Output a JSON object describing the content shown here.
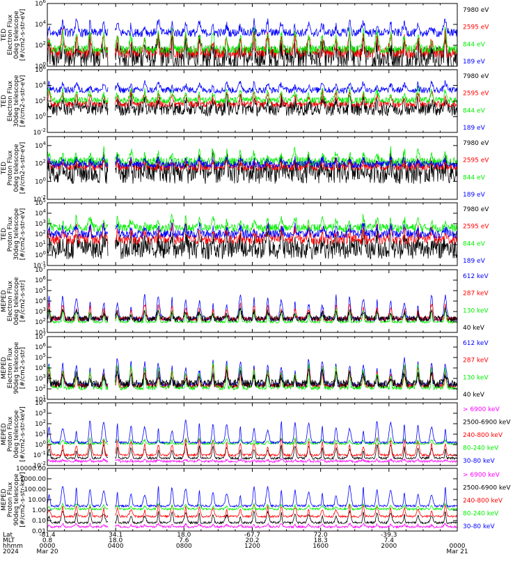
{
  "colors": {
    "black": "#000000",
    "blue": "#0000ff",
    "red": "#ff0000",
    "green": "#00ee00",
    "magenta": "#ff00ff",
    "frame": "#000000"
  },
  "chart_data": [
    {
      "type": "line",
      "ylabel_lines": [
        "TED",
        "Electron Flux",
        "0deg telescope",
        "[#/cm2-s-str-eV]"
      ],
      "y_log": true,
      "ylim_exp": [
        0,
        6
      ],
      "yticks": [
        {
          "exp": 0,
          "label_base": "10",
          "label_exp": "0"
        },
        {
          "exp": 2,
          "label_base": "10",
          "label_exp": "2"
        },
        {
          "exp": 4,
          "label_base": "10",
          "label_exp": "4"
        },
        {
          "exp": 6,
          "label_base": "10",
          "label_exp": "6"
        }
      ],
      "series": [
        {
          "name": "7980 eV",
          "color": "black",
          "base": 0.8,
          "peak": 2.3,
          "noise": 1.2
        },
        {
          "name": "2595 eV",
          "color": "red",
          "base": 1.3,
          "peak": 3.2,
          "noise": 0.5
        },
        {
          "name": "844 eV",
          "color": "green",
          "base": 1.6,
          "peak": 3.5,
          "noise": 0.4
        },
        {
          "name": "189 eV",
          "color": "blue",
          "base": 3.2,
          "peak": 4.3,
          "noise": 0.4
        }
      ]
    },
    {
      "type": "line",
      "ylabel_lines": [
        "TED",
        "Electron Flux",
        "30deg telescope",
        "[#/cm2-s-str-eV]"
      ],
      "y_log": true,
      "ylim_exp": [
        -2,
        6
      ],
      "yticks": [
        {
          "exp": -2,
          "label_base": "10",
          "label_exp": "-2"
        },
        {
          "exp": 0,
          "label_base": "10",
          "label_exp": "0"
        },
        {
          "exp": 2,
          "label_base": "10",
          "label_exp": "2"
        },
        {
          "exp": 4,
          "label_base": "10",
          "label_exp": "4"
        },
        {
          "exp": 6,
          "label_base": "10",
          "label_exp": "6"
        }
      ],
      "series": [
        {
          "name": "7980 eV",
          "color": "black",
          "base": 1.0,
          "peak": 2.3,
          "noise": 0.9
        },
        {
          "name": "2595 eV",
          "color": "red",
          "base": 1.6,
          "peak": 3.3,
          "noise": 0.4
        },
        {
          "name": "844 eV",
          "color": "green",
          "base": 2.1,
          "peak": 3.6,
          "noise": 0.4
        },
        {
          "name": "189 eV",
          "color": "blue",
          "base": 3.4,
          "peak": 4.5,
          "noise": 0.4
        }
      ]
    },
    {
      "type": "line",
      "ylabel_lines": [
        "TED",
        "Proton Flux",
        "0deg telescope",
        "[#/cm2-s-str-eV]"
      ],
      "y_log": true,
      "ylim_exp": [
        -2,
        5
      ],
      "yticks": [
        {
          "exp": -2,
          "label_base": "10",
          "label_exp": "-2"
        },
        {
          "exp": 0,
          "label_base": "10",
          "label_exp": "0"
        },
        {
          "exp": 2,
          "label_base": "10",
          "label_exp": "2"
        },
        {
          "exp": 4,
          "label_base": "10",
          "label_exp": "4"
        }
      ],
      "series": [
        {
          "name": "7980 eV",
          "color": "black",
          "base": 1.0,
          "peak": 2.2,
          "noise": 1.3
        },
        {
          "name": "2595 eV",
          "color": "red",
          "base": 1.6,
          "peak": 2.4,
          "noise": 0.4
        },
        {
          "name": "844 eV",
          "color": "green",
          "base": 2.2,
          "peak": 3.5,
          "noise": 0.5
        },
        {
          "name": "189 eV",
          "color": "blue",
          "base": 1.9,
          "peak": 2.6,
          "noise": 0.4
        }
      ]
    },
    {
      "type": "line",
      "ylabel_lines": [
        "TED",
        "Proton Flux",
        "30deg telescope",
        "[#/cm2-s-str-eV]"
      ],
      "y_log": true,
      "ylim_exp": [
        -1,
        5
      ],
      "yticks": [
        {
          "exp": -1,
          "label_base": "10",
          "label_exp": "-1"
        },
        {
          "exp": 0,
          "label_base": "10",
          "label_exp": "0"
        },
        {
          "exp": 1,
          "label_base": "10",
          "label_exp": "1"
        },
        {
          "exp": 2,
          "label_base": "10",
          "label_exp": "2"
        },
        {
          "exp": 3,
          "label_base": "10",
          "label_exp": "3"
        },
        {
          "exp": 4,
          "label_base": "10",
          "label_exp": "4"
        },
        {
          "exp": 5,
          "label_base": "10",
          "label_exp": "5"
        }
      ],
      "series": [
        {
          "name": "7980 eV",
          "color": "black",
          "base": 0.6,
          "peak": 1.9,
          "noise": 1.0
        },
        {
          "name": "2595 eV",
          "color": "red",
          "base": 1.5,
          "peak": 2.8,
          "noise": 0.5
        },
        {
          "name": "844 eV",
          "color": "green",
          "base": 2.6,
          "peak": 3.6,
          "noise": 0.4
        },
        {
          "name": "189 eV",
          "color": "blue",
          "base": 2.0,
          "peak": 2.9,
          "noise": 0.4
        }
      ]
    },
    {
      "type": "line",
      "ylabel_lines": [
        "MEPED",
        "Electron Flux",
        "0deg telescope",
        "[#/cm2-s-str]"
      ],
      "y_log": true,
      "ylim_exp": [
        1,
        7
      ],
      "yticks": [
        {
          "exp": 1,
          "label_base": "10",
          "label_exp": "1"
        },
        {
          "exp": 2,
          "label_base": "10",
          "label_exp": "2"
        },
        {
          "exp": 3,
          "label_base": "10",
          "label_exp": "3"
        },
        {
          "exp": 4,
          "label_base": "10",
          "label_exp": "4"
        },
        {
          "exp": 5,
          "label_base": "10",
          "label_exp": "5"
        },
        {
          "exp": 6,
          "label_base": "10",
          "label_exp": "6"
        },
        {
          "exp": 7,
          "label_base": "10",
          "label_exp": "7"
        }
      ],
      "series": [
        {
          "name": "612 keV",
          "color": "blue",
          "base": 2.3,
          "peak": 4.6,
          "noise": 0.2
        },
        {
          "name": "287 keV",
          "color": "red",
          "base": 2.3,
          "peak": 3.7,
          "noise": 0.2
        },
        {
          "name": "130 keV",
          "color": "green",
          "base": 2.0,
          "peak": 3.2,
          "noise": 0.1
        },
        {
          "name": "40 keV",
          "color": "black",
          "base": 2.3,
          "peak": 3.2,
          "noise": 0.3
        }
      ]
    },
    {
      "type": "line",
      "ylabel_lines": [
        "MEPED",
        "Electron Flux",
        "90deg telescope",
        "[#/cm2-s-str]"
      ],
      "y_log": true,
      "ylim_exp": [
        1,
        7
      ],
      "yticks": [
        {
          "exp": 1,
          "label_base": "10",
          "label_exp": "1"
        },
        {
          "exp": 2,
          "label_base": "10",
          "label_exp": "2"
        },
        {
          "exp": 3,
          "label_base": "10",
          "label_exp": "3"
        },
        {
          "exp": 4,
          "label_base": "10",
          "label_exp": "4"
        },
        {
          "exp": 5,
          "label_base": "10",
          "label_exp": "5"
        },
        {
          "exp": 6,
          "label_base": "10",
          "label_exp": "6"
        },
        {
          "exp": 7,
          "label_base": "10",
          "label_exp": "7"
        }
      ],
      "series": [
        {
          "name": "612 keV",
          "color": "blue",
          "base": 2.4,
          "peak": 4.9,
          "noise": 0.2
        },
        {
          "name": "287 keV",
          "color": "red",
          "base": 2.3,
          "peak": 4.2,
          "noise": 0.2
        },
        {
          "name": "130 keV",
          "color": "green",
          "base": 2.1,
          "peak": 4.4,
          "noise": 0.2
        },
        {
          "name": "40 keV",
          "color": "black",
          "base": 2.5,
          "peak": 3.6,
          "noise": 0.4
        }
      ]
    },
    {
      "type": "line",
      "ylabel_lines": [
        "MEPED",
        "Proton Flux",
        "0deg telescope",
        "[#/cm2-s-str-keV]"
      ],
      "y_log": true,
      "ylim_exp": [
        -2,
        4
      ],
      "yticks": [
        {
          "exp": -2,
          "label_base": "10",
          "label_exp": "-2"
        },
        {
          "exp": -1,
          "label_base": "10",
          "label_exp": "-1"
        },
        {
          "exp": 0,
          "label_base": "10",
          "label_exp": "0"
        },
        {
          "exp": 1,
          "label_base": "10",
          "label_exp": "1"
        },
        {
          "exp": 2,
          "label_base": "10",
          "label_exp": "2"
        },
        {
          "exp": 3,
          "label_base": "10",
          "label_exp": "3"
        },
        {
          "exp": 4,
          "label_base": "10",
          "label_exp": "4"
        }
      ],
      "series": [
        {
          "name": "> 6900 keV",
          "color": "magenta",
          "base": -1.6,
          "peak": -1.4,
          "noise": 0.1
        },
        {
          "name": "2500-6900 keV",
          "color": "black",
          "base": -1.3,
          "peak": 0.0,
          "noise": 0.1
        },
        {
          "name": "240-800 keV",
          "color": "red",
          "base": -1.0,
          "peak": 0.6,
          "noise": 0.1
        },
        {
          "name": "80-240 keV",
          "color": "green",
          "base": 0.1,
          "peak": 0.6,
          "noise": 0.1
        },
        {
          "name": "30-80 keV",
          "color": "blue",
          "base": 0.2,
          "peak": 2.3,
          "noise": 0.1
        }
      ]
    },
    {
      "type": "line",
      "ylabel_lines": [
        "MEPED",
        "Proton Flux",
        "90deg telescope",
        "[#/cm2-s-str-keV]"
      ],
      "y_log": true,
      "ylim_exp": [
        -2,
        4
      ],
      "yticks": [
        {
          "exp": -2,
          "label": "0.01"
        },
        {
          "exp": -1,
          "label": "0.10"
        },
        {
          "exp": 0,
          "label": "1.00"
        },
        {
          "exp": 1,
          "label": "10.00"
        },
        {
          "exp": 2,
          "label": "100.00"
        },
        {
          "exp": 3,
          "label": "1000.00"
        },
        {
          "exp": 4,
          "label": "10000.00"
        }
      ],
      "series": [
        {
          "name": "> 6900 keV",
          "color": "magenta",
          "base": -1.6,
          "peak": -1.3,
          "noise": 0.1
        },
        {
          "name": "2500-6900 keV",
          "color": "black",
          "base": -1.2,
          "peak": -0.1,
          "noise": 0.1
        },
        {
          "name": "240-800 keV",
          "color": "red",
          "base": -0.6,
          "peak": 0.5,
          "noise": 0.1
        },
        {
          "name": "80-240 keV",
          "color": "green",
          "base": 0.1,
          "peak": 0.6,
          "noise": 0.1
        },
        {
          "name": "30-80 keV",
          "color": "blue",
          "base": 0.4,
          "peak": 2.3,
          "noise": 0.1
        }
      ]
    }
  ],
  "x_axis": {
    "row_labels": [
      "Lat",
      "MLT",
      "hhmm",
      "2024"
    ],
    "columns": [
      {
        "lat": "-81.4",
        "mlt": "0.8",
        "hhmm": "0000",
        "date": "Mar 20"
      },
      {
        "lat": "34.1",
        "mlt": "18.0",
        "hhmm": "0400",
        "date": ""
      },
      {
        "lat": "18.0",
        "mlt": "7.6",
        "hhmm": "0800",
        "date": ""
      },
      {
        "lat": "-67.7",
        "mlt": "20.2",
        "hhmm": "1200",
        "date": ""
      },
      {
        "lat": "72.0",
        "mlt": "18.3",
        "hhmm": "1600",
        "date": ""
      },
      {
        "lat": "-39.3",
        "mlt": "7.4",
        "hhmm": "2000",
        "date": ""
      },
      {
        "lat": "",
        "mlt": "",
        "hhmm": "0000",
        "date": "Mar 21"
      }
    ],
    "x_hours_range": [
      0,
      24
    ],
    "data_gap_hours": [
      3.55,
      3.95
    ]
  }
}
